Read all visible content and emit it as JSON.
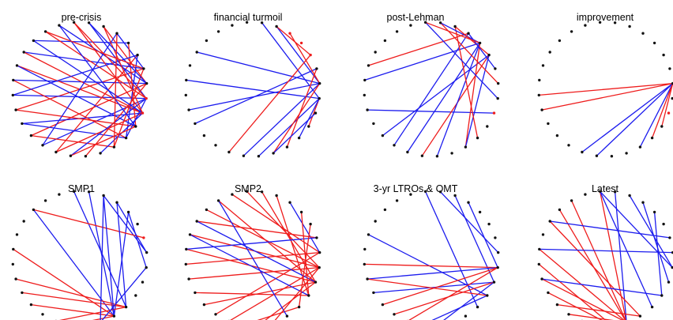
{
  "chart_data": [
    {
      "type": "network",
      "title": "pre-crisis",
      "nodes": 28,
      "red_nodes": [
        8,
        9
      ],
      "edges": [
        {
          "from": 16,
          "to": 5,
          "color": "red"
        },
        {
          "from": 17,
          "to": 8,
          "color": "blue"
        },
        {
          "from": 18,
          "to": 7,
          "color": "red"
        },
        {
          "from": 19,
          "to": 9,
          "color": "blue"
        },
        {
          "from": 20,
          "to": 6,
          "color": "red"
        },
        {
          "from": 21,
          "to": 8,
          "color": "blue"
        },
        {
          "from": 22,
          "to": 7,
          "color": "blue"
        },
        {
          "from": 23,
          "to": 9,
          "color": "red"
        },
        {
          "from": 24,
          "to": 6,
          "color": "blue"
        },
        {
          "from": 25,
          "to": 4,
          "color": "blue"
        },
        {
          "from": 26,
          "to": 8,
          "color": "red"
        },
        {
          "from": 27,
          "to": 7,
          "color": "blue"
        },
        {
          "from": 0,
          "to": 9,
          "color": "red"
        },
        {
          "from": 1,
          "to": 8,
          "color": "blue"
        },
        {
          "from": 2,
          "to": 7,
          "color": "red"
        },
        {
          "from": 3,
          "to": 6,
          "color": "blue"
        },
        {
          "from": 4,
          "to": 10,
          "color": "red"
        },
        {
          "from": 5,
          "to": 11,
          "color": "blue"
        },
        {
          "from": 24,
          "to": 9,
          "color": "red"
        },
        {
          "from": 23,
          "to": 10,
          "color": "blue"
        },
        {
          "from": 22,
          "to": 11,
          "color": "red"
        },
        {
          "from": 21,
          "to": 5,
          "color": "blue"
        },
        {
          "from": 20,
          "to": 10,
          "color": "red"
        },
        {
          "from": 19,
          "to": 11,
          "color": "blue"
        },
        {
          "from": 18,
          "to": 12,
          "color": "red"
        },
        {
          "from": 17,
          "to": 3,
          "color": "blue"
        },
        {
          "from": 16,
          "to": 9,
          "color": "red"
        },
        {
          "from": 15,
          "to": 8,
          "color": "blue"
        },
        {
          "from": 14,
          "to": 7,
          "color": "red"
        },
        {
          "from": 13,
          "to": 9,
          "color": "blue"
        },
        {
          "from": 12,
          "to": 6,
          "color": "red"
        },
        {
          "from": 11,
          "to": 8,
          "color": "blue"
        },
        {
          "from": 2,
          "to": 9,
          "color": "red"
        },
        {
          "from": 1,
          "to": 7,
          "color": "blue"
        },
        {
          "from": 0,
          "to": 8,
          "color": "red"
        },
        {
          "from": 27,
          "to": 10,
          "color": "blue"
        },
        {
          "from": 26,
          "to": 6,
          "color": "red"
        },
        {
          "from": 25,
          "to": 9,
          "color": "blue"
        },
        {
          "from": 3,
          "to": 12,
          "color": "red"
        },
        {
          "from": 15,
          "to": 10,
          "color": "red"
        }
      ]
    },
    {
      "type": "network",
      "title": "financial turmoil",
      "nodes": 28,
      "red_nodes": [
        3,
        4,
        5
      ],
      "edges": [
        {
          "from": 19,
          "to": 6,
          "color": "blue"
        },
        {
          "from": 20,
          "to": 7,
          "color": "blue"
        },
        {
          "from": 22,
          "to": 8,
          "color": "blue"
        },
        {
          "from": 24,
          "to": 7,
          "color": "blue"
        },
        {
          "from": 2,
          "to": 7,
          "color": "blue"
        },
        {
          "from": 1,
          "to": 8,
          "color": "blue"
        },
        {
          "from": 14,
          "to": 8,
          "color": "blue"
        },
        {
          "from": 15,
          "to": 7,
          "color": "blue"
        },
        {
          "from": 16,
          "to": 5,
          "color": "red"
        },
        {
          "from": 12,
          "to": 6,
          "color": "red"
        },
        {
          "from": 10,
          "to": 8,
          "color": "red"
        },
        {
          "from": 3,
          "to": 7,
          "color": "red"
        },
        {
          "from": 2,
          "to": 5,
          "color": "red"
        },
        {
          "from": 13,
          "to": 7,
          "color": "red"
        },
        {
          "from": 13,
          "to": 9,
          "color": "blue"
        },
        {
          "from": 11,
          "to": 8,
          "color": "blue"
        }
      ]
    },
    {
      "type": "network",
      "title": "post-Lehman",
      "nodes": 28,
      "red_nodes": [
        9
      ],
      "edges": [
        {
          "from": 23,
          "to": 3,
          "color": "red"
        },
        {
          "from": 22,
          "to": 4,
          "color": "blue"
        },
        {
          "from": 20,
          "to": 9,
          "color": "blue"
        },
        {
          "from": 18,
          "to": 5,
          "color": "blue"
        },
        {
          "from": 17,
          "to": 3,
          "color": "blue"
        },
        {
          "from": 16,
          "to": 4,
          "color": "blue"
        },
        {
          "from": 15,
          "to": 5,
          "color": "red"
        },
        {
          "from": 14,
          "to": 4,
          "color": "blue"
        },
        {
          "from": 12,
          "to": 4,
          "color": "red"
        },
        {
          "from": 12,
          "to": 5,
          "color": "blue"
        },
        {
          "from": 11,
          "to": 2,
          "color": "red"
        },
        {
          "from": 8,
          "to": 0,
          "color": "blue"
        },
        {
          "from": 7,
          "to": 1,
          "color": "red"
        },
        {
          "from": 1,
          "to": 4,
          "color": "blue"
        },
        {
          "from": 2,
          "to": 5,
          "color": "red"
        },
        {
          "from": 3,
          "to": 6,
          "color": "blue"
        },
        {
          "from": 0,
          "to": 4,
          "color": "red"
        }
      ]
    },
    {
      "type": "network",
      "title": "improvement",
      "nodes": 28,
      "red_nodes": [
        9
      ],
      "edges": [
        {
          "from": 21,
          "to": 7,
          "color": "red"
        },
        {
          "from": 20,
          "to": 7,
          "color": "red"
        },
        {
          "from": 16,
          "to": 7,
          "color": "blue"
        },
        {
          "from": 15,
          "to": 7,
          "color": "blue"
        },
        {
          "from": 12,
          "to": 7,
          "color": "blue"
        },
        {
          "from": 10,
          "to": 7,
          "color": "red"
        },
        {
          "from": 11,
          "to": 7,
          "color": "red"
        }
      ]
    },
    {
      "type": "network",
      "title": "SMP1",
      "nodes": 28,
      "red_nodes": [
        6
      ],
      "edges": [
        {
          "from": 25,
          "to": 12,
          "color": "blue"
        },
        {
          "from": 0,
          "to": 11,
          "color": "blue"
        },
        {
          "from": 1,
          "to": 12,
          "color": "blue"
        },
        {
          "from": 2,
          "to": 7,
          "color": "blue"
        },
        {
          "from": 3,
          "to": 7,
          "color": "blue"
        },
        {
          "from": 4,
          "to": 12,
          "color": "blue"
        },
        {
          "from": 25,
          "to": 6,
          "color": "red"
        },
        {
          "from": 22,
          "to": 12,
          "color": "red"
        },
        {
          "from": 20,
          "to": 11,
          "color": "red"
        },
        {
          "from": 19,
          "to": 11,
          "color": "red"
        },
        {
          "from": 18,
          "to": 12,
          "color": "red"
        },
        {
          "from": 16,
          "to": 11,
          "color": "red"
        },
        {
          "from": 15,
          "to": 12,
          "color": "red"
        },
        {
          "from": 13,
          "to": 2,
          "color": "blue"
        },
        {
          "from": 13,
          "to": 8,
          "color": "blue"
        },
        {
          "from": 3,
          "to": 11,
          "color": "blue"
        },
        {
          "from": 4,
          "to": 8,
          "color": "blue"
        },
        {
          "from": 2,
          "to": 12,
          "color": "blue"
        }
      ]
    },
    {
      "type": "network",
      "title": "SMP2",
      "nodes": 28,
      "red_nodes": [],
      "edges": [
        {
          "from": 25,
          "to": 8,
          "color": "red"
        },
        {
          "from": 26,
          "to": 9,
          "color": "red"
        },
        {
          "from": 27,
          "to": 7,
          "color": "red"
        },
        {
          "from": 0,
          "to": 8,
          "color": "red"
        },
        {
          "from": 1,
          "to": 9,
          "color": "red"
        },
        {
          "from": 2,
          "to": 10,
          "color": "red"
        },
        {
          "from": 3,
          "to": 7,
          "color": "blue"
        },
        {
          "from": 24,
          "to": 6,
          "color": "red"
        },
        {
          "from": 23,
          "to": 8,
          "color": "red"
        },
        {
          "from": 22,
          "to": 9,
          "color": "red"
        },
        {
          "from": 21,
          "to": 7,
          "color": "red"
        },
        {
          "from": 20,
          "to": 8,
          "color": "red"
        },
        {
          "from": 19,
          "to": 10,
          "color": "red"
        },
        {
          "from": 18,
          "to": 9,
          "color": "red"
        },
        {
          "from": 17,
          "to": 7,
          "color": "red"
        },
        {
          "from": 16,
          "to": 8,
          "color": "red"
        },
        {
          "from": 15,
          "to": 11,
          "color": "red"
        },
        {
          "from": 14,
          "to": 9,
          "color": "red"
        },
        {
          "from": 23,
          "to": 10,
          "color": "blue"
        },
        {
          "from": 22,
          "to": 6,
          "color": "blue"
        },
        {
          "from": 24,
          "to": 9,
          "color": "blue"
        },
        {
          "from": 26,
          "to": 12,
          "color": "blue"
        },
        {
          "from": 13,
          "to": 8,
          "color": "red"
        },
        {
          "from": 4,
          "to": 10,
          "color": "red"
        },
        {
          "from": 5,
          "to": 11,
          "color": "red"
        }
      ]
    },
    {
      "type": "network",
      "title": "3-yr LTROs & OMT",
      "nodes": 28,
      "red_nodes": [
        16
      ],
      "edges": [
        {
          "from": 23,
          "to": 10,
          "color": "blue"
        },
        {
          "from": 0,
          "to": 11,
          "color": "blue"
        },
        {
          "from": 1,
          "to": 7,
          "color": "blue"
        },
        {
          "from": 3,
          "to": 8,
          "color": "blue"
        },
        {
          "from": 2,
          "to": 9,
          "color": "blue"
        },
        {
          "from": 21,
          "to": 8,
          "color": "red"
        },
        {
          "from": 20,
          "to": 8,
          "color": "blue"
        },
        {
          "from": 19,
          "to": 9,
          "color": "blue"
        },
        {
          "from": 18,
          "to": 8,
          "color": "red"
        },
        {
          "from": 17,
          "to": 9,
          "color": "red"
        },
        {
          "from": 15,
          "to": 10,
          "color": "blue"
        },
        {
          "from": 14,
          "to": 9,
          "color": "blue"
        },
        {
          "from": 20,
          "to": 10,
          "color": "red"
        },
        {
          "from": 16,
          "to": 8,
          "color": "red"
        }
      ]
    },
    {
      "type": "network",
      "title": "Latest",
      "nodes": 28,
      "red_nodes": [],
      "edges": [
        {
          "from": 0,
          "to": 13,
          "color": "red"
        },
        {
          "from": 0,
          "to": 11,
          "color": "blue"
        },
        {
          "from": 0,
          "to": 8,
          "color": "blue"
        },
        {
          "from": 1,
          "to": 13,
          "color": "blue"
        },
        {
          "from": 2,
          "to": 8,
          "color": "blue"
        },
        {
          "from": 3,
          "to": 9,
          "color": "blue"
        },
        {
          "from": 4,
          "to": 10,
          "color": "blue"
        },
        {
          "from": 26,
          "to": 13,
          "color": "red"
        },
        {
          "from": 25,
          "to": 13,
          "color": "red"
        },
        {
          "from": 24,
          "to": 12,
          "color": "red"
        },
        {
          "from": 22,
          "to": 13,
          "color": "red"
        },
        {
          "from": 21,
          "to": 14,
          "color": "red"
        },
        {
          "from": 20,
          "to": 13,
          "color": "red"
        },
        {
          "from": 19,
          "to": 14,
          "color": "red"
        },
        {
          "from": 18,
          "to": 12,
          "color": "red"
        },
        {
          "from": 17,
          "to": 13,
          "color": "red"
        },
        {
          "from": 16,
          "to": 13,
          "color": "red"
        },
        {
          "from": 15,
          "to": 13,
          "color": "red"
        },
        {
          "from": 24,
          "to": 6,
          "color": "blue"
        },
        {
          "from": 22,
          "to": 7,
          "color": "blue"
        },
        {
          "from": 20,
          "to": 10,
          "color": "blue"
        }
      ]
    }
  ]
}
